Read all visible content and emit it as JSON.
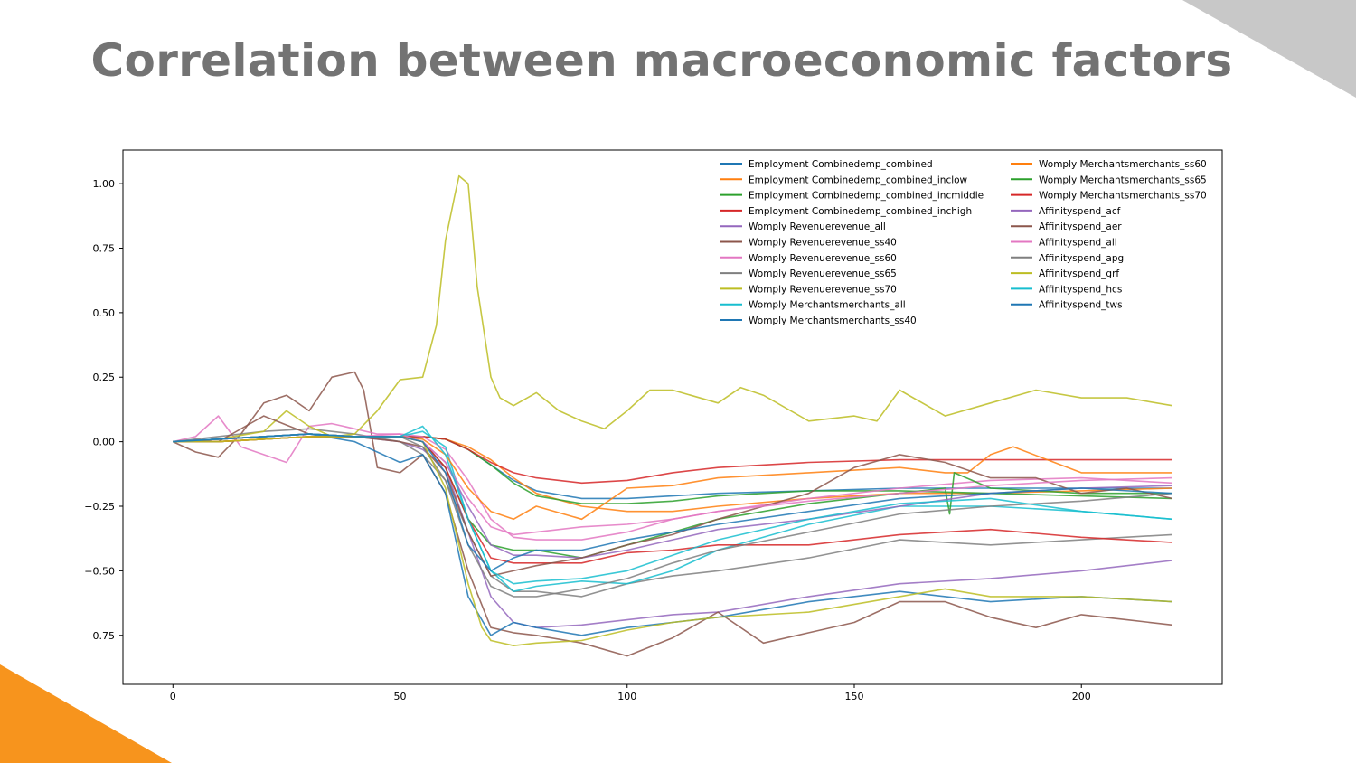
{
  "slide": {
    "title": "Correlation between macroeconomic factors"
  },
  "colors": {
    "corner_top_right": "#c8c8c8",
    "corner_bottom_left": "#f7941d"
  },
  "chart_data": {
    "type": "line",
    "title": "",
    "xlabel": "",
    "ylabel": "",
    "xlim": [
      -11,
      231
    ],
    "ylim": [
      -0.94,
      1.13
    ],
    "xticks": [
      0,
      50,
      100,
      150,
      200
    ],
    "xtick_labels": [
      "0",
      "50",
      "100",
      "150",
      "200"
    ],
    "yticks": [
      1.0,
      0.75,
      0.5,
      0.25,
      0.0,
      -0.25,
      -0.5,
      -0.75
    ],
    "ytick_labels": [
      "1.00",
      "0.75",
      "0.50",
      "0.25",
      "0.00",
      "−0.25",
      "−0.50",
      "−0.75"
    ],
    "grid": false,
    "legend_position": "top-right",
    "legend_columns": 2,
    "series": [
      {
        "name": "Employment Combinedemp_combined",
        "color": "#1f77b4",
        "x": [
          0,
          10,
          20,
          30,
          40,
          50,
          55,
          60,
          65,
          70,
          75,
          80,
          90,
          100,
          110,
          120,
          140,
          160,
          180,
          200,
          220
        ],
        "y": [
          0,
          0,
          0.01,
          0.02,
          0.02,
          0.02,
          0.02,
          0.01,
          -0.03,
          -0.09,
          -0.15,
          -0.19,
          -0.22,
          -0.22,
          -0.21,
          -0.2,
          -0.19,
          -0.18,
          -0.18,
          -0.18,
          -0.18
        ]
      },
      {
        "name": "Employment Combinedemp_combined_inclow",
        "color": "#ff7f0e",
        "x": [
          0,
          10,
          20,
          30,
          40,
          50,
          55,
          60,
          65,
          70,
          75,
          80,
          90,
          100,
          110,
          120,
          140,
          160,
          180,
          200,
          220
        ],
        "y": [
          0,
          0,
          0.01,
          0.02,
          0.02,
          0.02,
          0.02,
          0.01,
          -0.02,
          -0.07,
          -0.14,
          -0.2,
          -0.25,
          -0.27,
          -0.27,
          -0.25,
          -0.22,
          -0.2,
          -0.2,
          -0.19,
          -0.18
        ]
      },
      {
        "name": "Employment Combinedemp_combined_incmiddle",
        "color": "#2ca02c",
        "x": [
          0,
          10,
          20,
          30,
          40,
          50,
          55,
          60,
          65,
          70,
          75,
          80,
          90,
          100,
          110,
          120,
          140,
          160,
          180,
          200,
          220
        ],
        "y": [
          0,
          0,
          0.01,
          0.02,
          0.02,
          0.02,
          0.02,
          0.01,
          -0.03,
          -0.09,
          -0.16,
          -0.21,
          -0.24,
          -0.24,
          -0.23,
          -0.21,
          -0.19,
          -0.19,
          -0.2,
          -0.21,
          -0.22
        ]
      },
      {
        "name": "Employment Combinedemp_combined_inchigh",
        "color": "#d62728",
        "x": [
          0,
          10,
          20,
          30,
          40,
          50,
          55,
          60,
          65,
          70,
          75,
          80,
          90,
          100,
          110,
          120,
          140,
          160,
          180,
          200,
          220
        ],
        "y": [
          0,
          0,
          0.01,
          0.02,
          0.02,
          0.02,
          0.02,
          0.01,
          -0.03,
          -0.08,
          -0.12,
          -0.14,
          -0.16,
          -0.15,
          -0.12,
          -0.1,
          -0.08,
          -0.07,
          -0.07,
          -0.07,
          -0.07
        ]
      },
      {
        "name": "Womply Revenuerevenue_all",
        "color": "#9467bd",
        "x": [
          0,
          10,
          20,
          30,
          40,
          50,
          55,
          60,
          65,
          70,
          75,
          80,
          90,
          100,
          110,
          120,
          140,
          160,
          180,
          200,
          220
        ],
        "y": [
          0,
          0.01,
          0.02,
          0.03,
          0.02,
          0,
          -0.03,
          -0.1,
          -0.35,
          -0.6,
          -0.7,
          -0.72,
          -0.71,
          -0.69,
          -0.67,
          -0.66,
          -0.6,
          -0.55,
          -0.53,
          -0.5,
          -0.46
        ]
      },
      {
        "name": "Womply Revenuerevenue_ss40",
        "color": "#8c564b",
        "x": [
          0,
          5,
          10,
          15,
          20,
          25,
          30,
          35,
          40,
          42,
          45,
          50,
          55,
          60,
          65,
          70,
          75,
          80,
          90,
          100,
          110,
          120,
          130,
          140,
          150,
          160,
          170,
          180,
          190,
          200,
          210,
          220
        ],
        "y": [
          0,
          -0.04,
          -0.06,
          0.03,
          0.15,
          0.18,
          0.12,
          0.25,
          0.27,
          0.2,
          -0.1,
          -0.12,
          -0.05,
          -0.2,
          -0.5,
          -0.72,
          -0.74,
          -0.75,
          -0.78,
          -0.83,
          -0.76,
          -0.66,
          -0.78,
          -0.74,
          -0.7,
          -0.62,
          -0.62,
          -0.68,
          -0.72,
          -0.67,
          -0.69,
          -0.71
        ]
      },
      {
        "name": "Womply Revenuerevenue_ss60",
        "color": "#e377c2",
        "x": [
          0,
          5,
          10,
          15,
          20,
          25,
          30,
          35,
          40,
          45,
          50,
          55,
          60,
          65,
          70,
          75,
          80,
          90,
          100,
          110,
          120,
          140,
          160,
          180,
          200,
          220
        ],
        "y": [
          0,
          0.02,
          0.1,
          -0.02,
          -0.05,
          -0.08,
          0.06,
          0.07,
          0.05,
          0.03,
          0.03,
          0.02,
          -0.03,
          -0.15,
          -0.3,
          -0.37,
          -0.38,
          -0.38,
          -0.35,
          -0.3,
          -0.27,
          -0.22,
          -0.18,
          -0.15,
          -0.14,
          -0.16
        ]
      },
      {
        "name": "Womply Revenuerevenue_ss65",
        "color": "#7f7f7f",
        "x": [
          0,
          10,
          20,
          30,
          40,
          50,
          55,
          60,
          65,
          70,
          75,
          80,
          90,
          100,
          110,
          120,
          140,
          160,
          180,
          200,
          220
        ],
        "y": [
          0,
          0.02,
          0.04,
          0.05,
          0.03,
          0,
          -0.05,
          -0.15,
          -0.35,
          -0.52,
          -0.58,
          -0.58,
          -0.6,
          -0.55,
          -0.52,
          -0.5,
          -0.45,
          -0.38,
          -0.4,
          -0.38,
          -0.36
        ]
      },
      {
        "name": "Womply Revenuerevenue_ss70",
        "color": "#bcbd22",
        "x": [
          0,
          10,
          20,
          25,
          30,
          35,
          40,
          45,
          50,
          55,
          58,
          60,
          62,
          63,
          65,
          67,
          70,
          72,
          75,
          80,
          85,
          90,
          95,
          100,
          105,
          110,
          120,
          125,
          130,
          140,
          150,
          155,
          160,
          170,
          180,
          190,
          200,
          210,
          220
        ],
        "y": [
          0,
          0.01,
          0.04,
          0.12,
          0.06,
          0.02,
          0.03,
          0.12,
          0.24,
          0.25,
          0.45,
          0.78,
          0.95,
          1.03,
          1.0,
          0.6,
          0.25,
          0.17,
          0.14,
          0.19,
          0.12,
          0.08,
          0.05,
          0.12,
          0.2,
          0.2,
          0.15,
          0.21,
          0.18,
          0.08,
          0.1,
          0.08,
          0.2,
          0.1,
          0.15,
          0.2,
          0.17,
          0.17,
          0.14
        ]
      },
      {
        "name": "Womply Merchantsmerchants_all",
        "color": "#17becf",
        "x": [
          0,
          10,
          20,
          30,
          40,
          50,
          55,
          60,
          65,
          70,
          75,
          80,
          90,
          100,
          110,
          120,
          140,
          160,
          180,
          200,
          220
        ],
        "y": [
          0,
          0.01,
          0.02,
          0.03,
          0.02,
          0.02,
          0.04,
          -0.02,
          -0.3,
          -0.5,
          -0.58,
          -0.56,
          -0.54,
          -0.55,
          -0.5,
          -0.42,
          -0.32,
          -0.25,
          -0.25,
          -0.27,
          -0.3
        ]
      },
      {
        "name": "Womply Merchantsmerchants_ss40",
        "color": "#1f77b4",
        "x": [
          0,
          10,
          20,
          30,
          40,
          50,
          55,
          60,
          65,
          70,
          75,
          80,
          90,
          100,
          110,
          120,
          140,
          160,
          180,
          200,
          220
        ],
        "y": [
          0,
          0.01,
          0.02,
          0.03,
          0,
          -0.08,
          -0.05,
          -0.2,
          -0.6,
          -0.75,
          -0.7,
          -0.72,
          -0.75,
          -0.72,
          -0.7,
          -0.68,
          -0.62,
          -0.58,
          -0.62,
          -0.6,
          -0.62
        ]
      },
      {
        "name": "Womply Merchantsmerchants_ss60",
        "color": "#ff7f0e",
        "x": [
          0,
          10,
          20,
          30,
          40,
          50,
          55,
          60,
          65,
          70,
          75,
          80,
          90,
          100,
          110,
          120,
          140,
          160,
          170,
          175,
          180,
          185,
          200,
          220
        ],
        "y": [
          0,
          0,
          0.01,
          0.02,
          0.02,
          0.02,
          0.01,
          -0.05,
          -0.18,
          -0.27,
          -0.3,
          -0.25,
          -0.3,
          -0.18,
          -0.17,
          -0.14,
          -0.12,
          -0.1,
          -0.12,
          -0.12,
          -0.05,
          -0.02,
          -0.12,
          -0.12
        ]
      },
      {
        "name": "Womply Merchantsmerchants_ss65",
        "color": "#2ca02c",
        "x": [
          0,
          10,
          20,
          30,
          40,
          50,
          55,
          60,
          65,
          70,
          75,
          80,
          90,
          100,
          110,
          120,
          140,
          160,
          170,
          171,
          172,
          180,
          200,
          220
        ],
        "y": [
          0,
          0.01,
          0.02,
          0.03,
          0.02,
          0.02,
          0,
          -0.1,
          -0.3,
          -0.4,
          -0.42,
          -0.42,
          -0.45,
          -0.4,
          -0.35,
          -0.3,
          -0.24,
          -0.2,
          -0.18,
          -0.28,
          -0.12,
          -0.18,
          -0.2,
          -0.2
        ]
      },
      {
        "name": "Womply Merchantsmerchants_ss70",
        "color": "#d62728",
        "x": [
          0,
          10,
          20,
          30,
          40,
          50,
          55,
          60,
          65,
          70,
          75,
          80,
          90,
          100,
          110,
          120,
          140,
          160,
          180,
          200,
          220
        ],
        "y": [
          0,
          0.01,
          0.02,
          0.03,
          0.02,
          0.02,
          0,
          -0.1,
          -0.3,
          -0.45,
          -0.47,
          -0.47,
          -0.47,
          -0.43,
          -0.42,
          -0.4,
          -0.4,
          -0.36,
          -0.34,
          -0.37,
          -0.39
        ]
      },
      {
        "name": "Affinityspend_acf",
        "color": "#9467bd",
        "x": [
          0,
          10,
          20,
          30,
          40,
          50,
          55,
          60,
          65,
          70,
          75,
          80,
          90,
          100,
          110,
          120,
          140,
          160,
          180,
          200,
          220
        ],
        "y": [
          0,
          0.01,
          0.02,
          0.03,
          0.02,
          0.02,
          0,
          -0.08,
          -0.25,
          -0.4,
          -0.44,
          -0.44,
          -0.45,
          -0.42,
          -0.38,
          -0.34,
          -0.3,
          -0.25,
          -0.2,
          -0.18,
          -0.17
        ]
      },
      {
        "name": "Affinityspend_aer",
        "color": "#8c564b",
        "x": [
          0,
          10,
          20,
          30,
          40,
          50,
          55,
          60,
          65,
          70,
          75,
          80,
          90,
          100,
          110,
          120,
          130,
          140,
          150,
          160,
          170,
          180,
          190,
          200,
          210,
          220
        ],
        "y": [
          0,
          0,
          0.1,
          0.03,
          0.02,
          0,
          -0.02,
          -0.12,
          -0.35,
          -0.52,
          -0.5,
          -0.48,
          -0.45,
          -0.4,
          -0.36,
          -0.3,
          -0.25,
          -0.2,
          -0.1,
          -0.05,
          -0.08,
          -0.14,
          -0.14,
          -0.2,
          -0.18,
          -0.22
        ]
      },
      {
        "name": "Affinityspend_all",
        "color": "#e377c2",
        "x": [
          0,
          10,
          20,
          30,
          40,
          50,
          55,
          60,
          65,
          70,
          75,
          80,
          90,
          100,
          110,
          120,
          140,
          160,
          180,
          200,
          220
        ],
        "y": [
          0,
          0.01,
          0.02,
          0.03,
          0.02,
          0.03,
          0,
          -0.08,
          -0.22,
          -0.33,
          -0.36,
          -0.35,
          -0.33,
          -0.32,
          -0.3,
          -0.27,
          -0.23,
          -0.2,
          -0.17,
          -0.15,
          -0.14
        ]
      },
      {
        "name": "Affinityspend_apg",
        "color": "#7f7f7f",
        "x": [
          0,
          10,
          20,
          30,
          40,
          50,
          55,
          60,
          65,
          70,
          75,
          80,
          90,
          100,
          110,
          120,
          140,
          160,
          180,
          200,
          220
        ],
        "y": [
          0,
          0.01,
          0.02,
          0.03,
          0.02,
          0.02,
          -0.02,
          -0.15,
          -0.4,
          -0.56,
          -0.6,
          -0.6,
          -0.57,
          -0.53,
          -0.47,
          -0.42,
          -0.35,
          -0.28,
          -0.25,
          -0.23,
          -0.2
        ]
      },
      {
        "name": "Affinityspend_grf",
        "color": "#bcbd22",
        "x": [
          0,
          10,
          20,
          30,
          40,
          50,
          55,
          60,
          65,
          68,
          70,
          75,
          80,
          90,
          100,
          110,
          120,
          140,
          160,
          170,
          180,
          200,
          220
        ],
        "y": [
          0,
          0,
          0.01,
          0.02,
          0.02,
          0.02,
          0,
          -0.18,
          -0.55,
          -0.72,
          -0.77,
          -0.79,
          -0.78,
          -0.77,
          -0.73,
          -0.7,
          -0.68,
          -0.66,
          -0.6,
          -0.57,
          -0.6,
          -0.6,
          -0.62
        ]
      },
      {
        "name": "Affinityspend_hcs",
        "color": "#17becf",
        "x": [
          0,
          10,
          20,
          30,
          40,
          50,
          55,
          60,
          65,
          70,
          75,
          80,
          90,
          100,
          110,
          120,
          140,
          160,
          180,
          200,
          220
        ],
        "y": [
          0,
          0.01,
          0.02,
          0.03,
          0.02,
          0.02,
          0.06,
          -0.05,
          -0.3,
          -0.5,
          -0.55,
          -0.54,
          -0.53,
          -0.5,
          -0.44,
          -0.38,
          -0.3,
          -0.24,
          -0.22,
          -0.27,
          -0.3
        ]
      },
      {
        "name": "Affinityspend_tws",
        "color": "#1f77b4",
        "x": [
          0,
          10,
          20,
          30,
          40,
          50,
          55,
          60,
          65,
          70,
          75,
          80,
          90,
          100,
          110,
          120,
          140,
          160,
          180,
          200,
          220
        ],
        "y": [
          0,
          0.01,
          0.02,
          0.03,
          0.02,
          0.02,
          0,
          -0.12,
          -0.4,
          -0.5,
          -0.45,
          -0.42,
          -0.42,
          -0.38,
          -0.35,
          -0.32,
          -0.27,
          -0.22,
          -0.2,
          -0.18,
          -0.2
        ]
      }
    ]
  }
}
